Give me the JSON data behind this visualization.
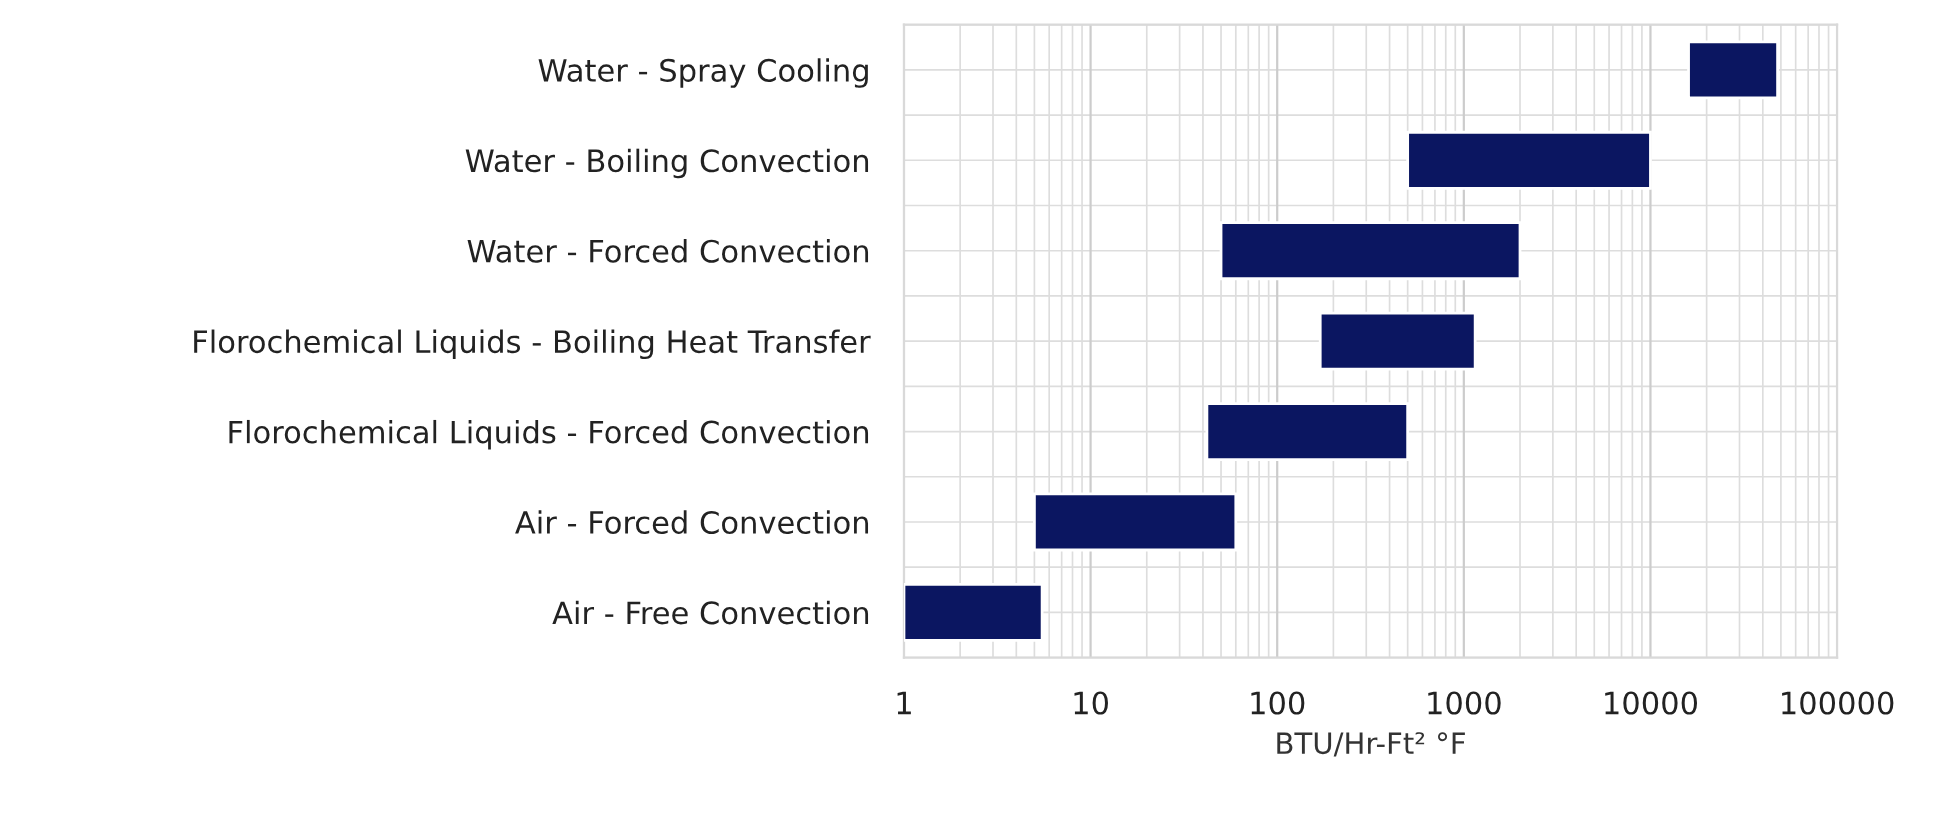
{
  "chart_data": {
    "type": "bar",
    "orientation": "horizontal",
    "xlabel": "BTU/Hr-Ft² °F",
    "categories": [
      "Water - Spray Cooling",
      "Water - Boiling Convection",
      "Water - Forced Convection",
      "Florochemical Liquids - Boiling Heat Transfer",
      "Florochemical Liquids - Forced Convection",
      "Air - Forced Convection",
      "Air - Free Convection"
    ],
    "base": [
      16000,
      500,
      50,
      170,
      42,
      5,
      1
    ],
    "values": [
      32000,
      9500,
      1950,
      980,
      458,
      55,
      4.5
    ],
    "color": "#0b1661",
    "log": "x",
    "xlim": [
      1,
      100000
    ],
    "xticks": [
      1,
      10,
      100,
      1000,
      10000,
      100000
    ],
    "grid": true
  }
}
